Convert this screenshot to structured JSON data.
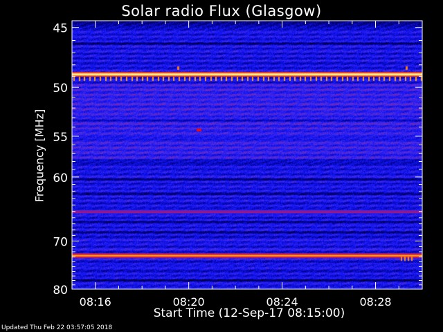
{
  "title": "Solar radio Flux (Glasgow)",
  "footer": "Updated Thu Feb 22 03:57:05 2018",
  "chart_data": {
    "type": "heatmap",
    "title": "Solar radio Flux (Glasgow)",
    "xlabel": "Start Time (12-Sep-17 08:15:00)",
    "ylabel": "Frequency [MHz]",
    "x_ticks": [
      "08:16",
      "08:20",
      "08:24",
      "08:28"
    ],
    "x_tick_minutes": [
      1,
      5,
      9,
      13
    ],
    "xlim_minutes": [
      0,
      15
    ],
    "y_ticks": [
      45,
      50,
      55,
      60,
      70,
      80
    ],
    "ylim": [
      44.5,
      80
    ],
    "y_scale": "reciprocal",
    "colormap": [
      "#000010",
      "#00008a",
      "#1418ff",
      "#6030d0",
      "#d00040",
      "#ff5000",
      "#ffc040",
      "#ffffe0"
    ],
    "bright_lines_mhz": [
      {
        "freq": 48.8,
        "intensity": "white"
      },
      {
        "freq": 65.0,
        "intensity": "red"
      },
      {
        "freq": 72.7,
        "intensity": "orange"
      }
    ],
    "dark_lines_mhz": [
      46.2,
      53.2,
      55.2,
      58.1,
      60.3,
      62.3,
      66.6,
      68.4,
      77.9
    ]
  }
}
